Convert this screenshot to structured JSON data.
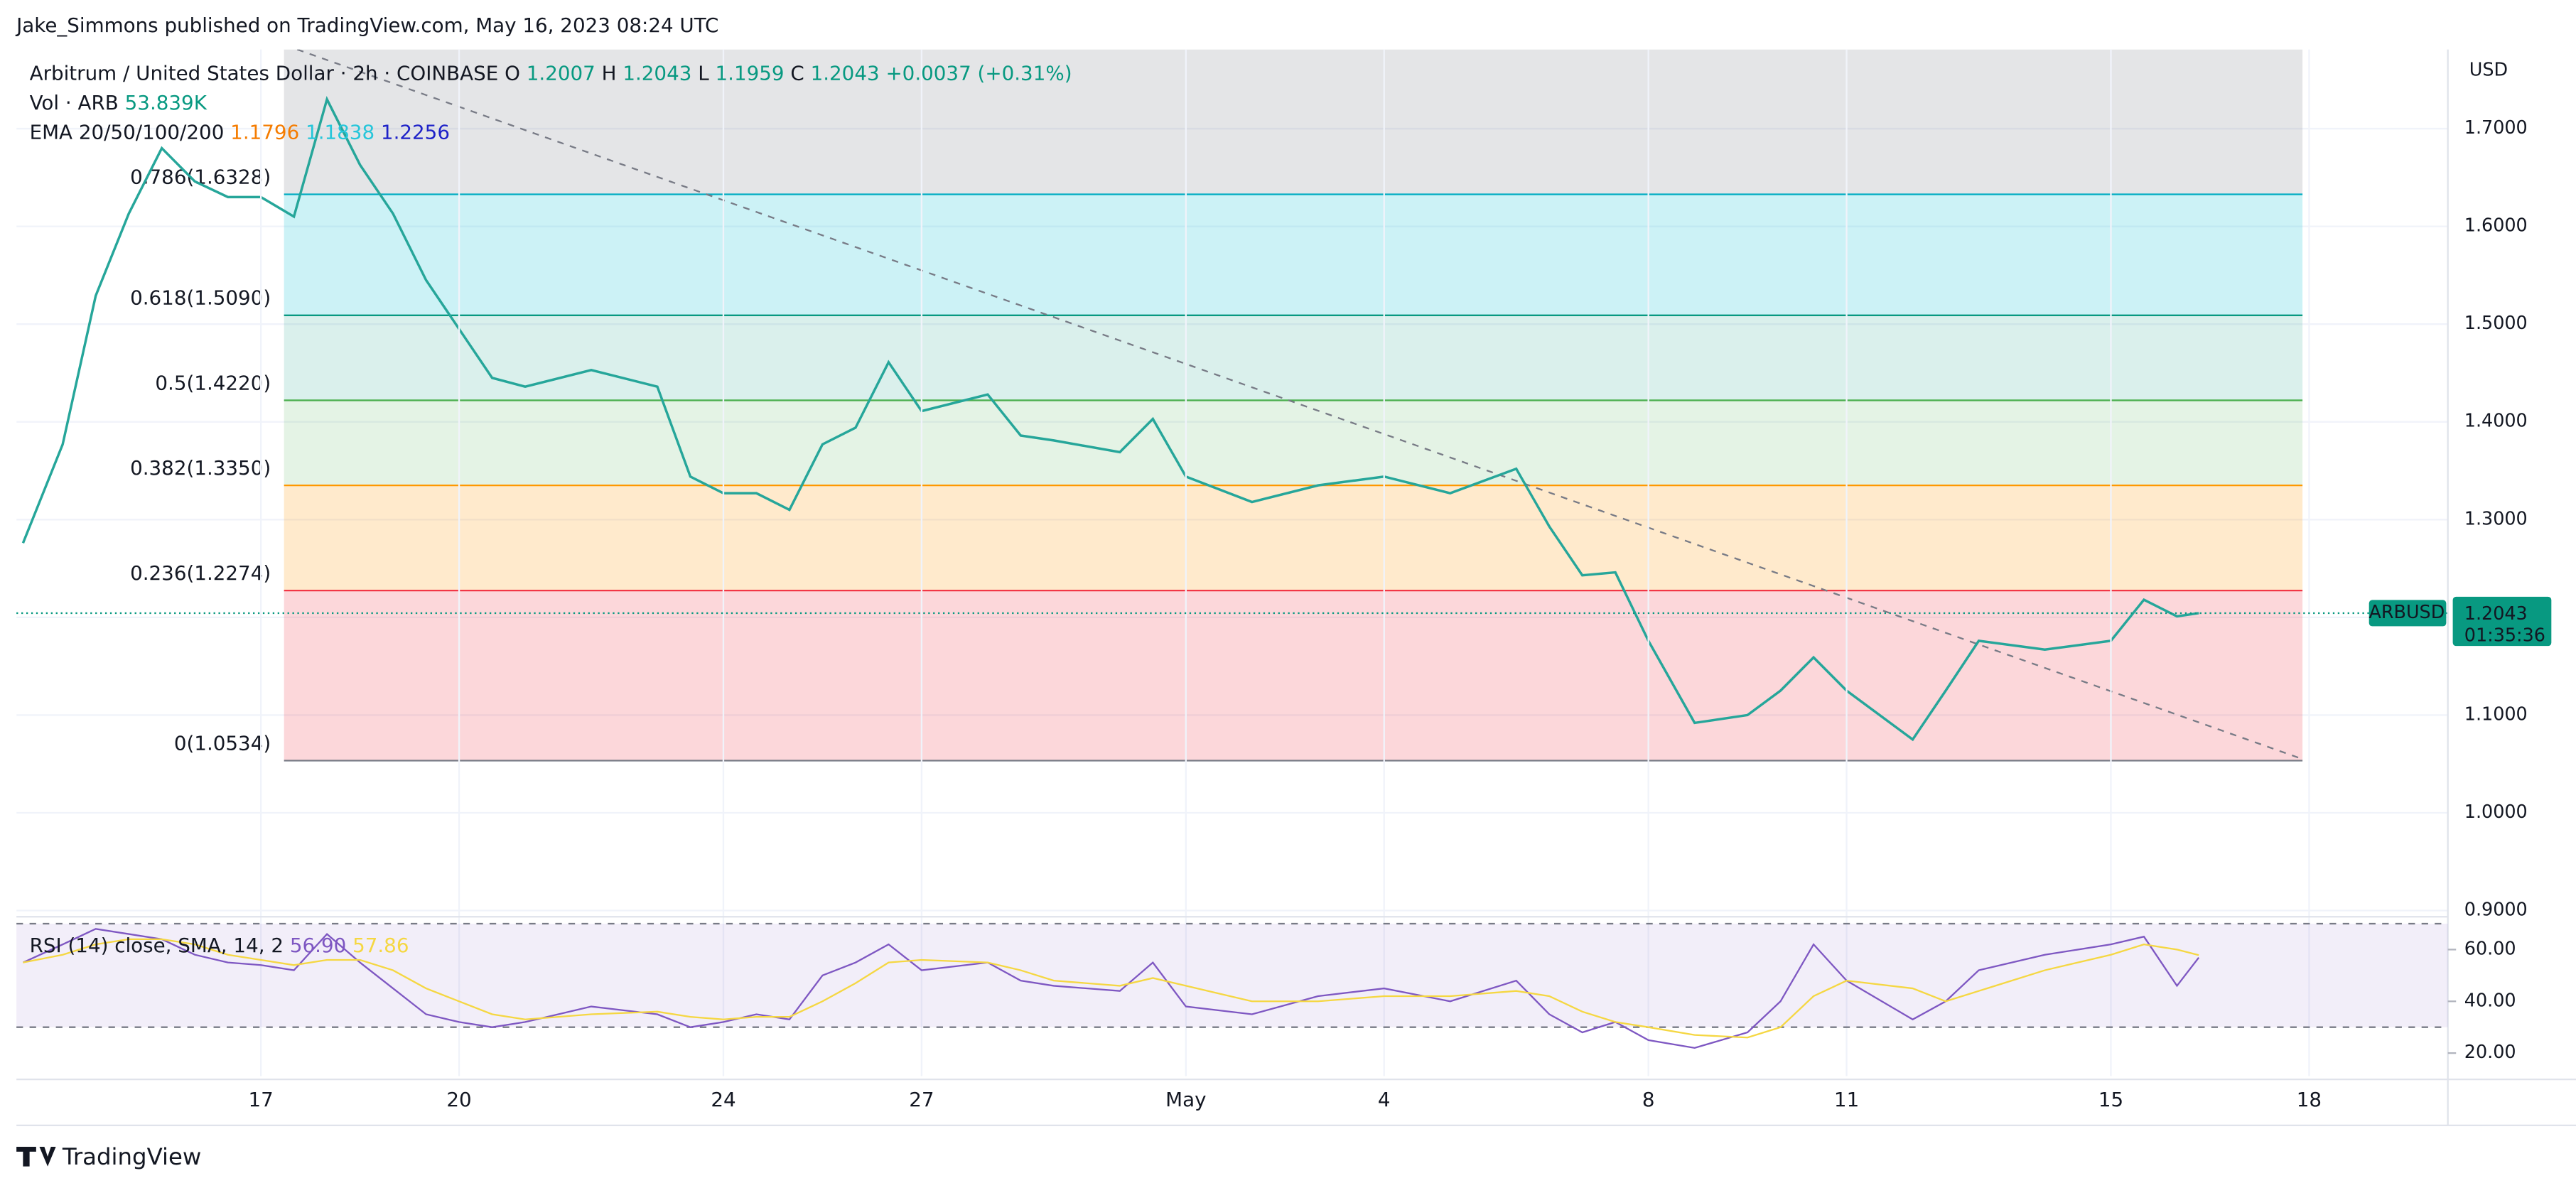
{
  "header": "Jake_Simmons published on TradingView.com, May 16, 2023 08:24 UTC",
  "footer": "TradingView",
  "chart_data": [
    {
      "type": "line",
      "symbol": "Arbitrum / United States Dollar · 2h · COINBASE",
      "ohlc": [
        {
          "label": "O",
          "value": 1.2007
        },
        {
          "label": "H",
          "value": 1.2043
        },
        {
          "label": "L",
          "value": 1.1959
        },
        {
          "label": "C",
          "value": 1.2043
        }
      ],
      "change": "+0.0037 (+0.31%)",
      "volume_legend": {
        "name": "Vol · ARB",
        "value": "53.839K"
      },
      "ema_legend": {
        "name": "EMA 20/50/100/200",
        "values": [
          1.1796,
          1.1838,
          1.2256
        ],
        "colors": [
          "#f57c00",
          "#26c6da",
          "#1e22c8"
        ]
      },
      "y_unit": "USD",
      "x": [
        13.4,
        14,
        14.5,
        15,
        15.5,
        16,
        16.5,
        17,
        17.5,
        18,
        18.5,
        19,
        19.5,
        20,
        20.5,
        21,
        22,
        23,
        23.5,
        24,
        24.5,
        25,
        25.5,
        26,
        26.5,
        27,
        28,
        28.5,
        29,
        30,
        30.5,
        31,
        32,
        33,
        34,
        35,
        36,
        36.5,
        37,
        37.5,
        38,
        38.7,
        39.5,
        40,
        40.5,
        41,
        42,
        42.5,
        43,
        44,
        45,
        45.5,
        46,
        46.33
      ],
      "series": [
        {
          "name": "ARBUSD",
          "color": "#26a69a",
          "values": [
            1.276,
            1.377,
            1.529,
            1.613,
            1.68,
            1.646,
            1.63,
            1.63,
            1.61,
            1.73,
            1.663,
            1.613,
            1.545,
            1.495,
            1.445,
            1.436,
            1.453,
            1.436,
            1.344,
            1.327,
            1.327,
            1.31,
            1.377,
            1.394,
            1.461,
            1.411,
            1.428,
            1.386,
            1.381,
            1.369,
            1.403,
            1.344,
            1.318,
            1.335,
            1.344,
            1.327,
            1.352,
            1.293,
            1.243,
            1.246,
            1.176,
            1.092,
            1.1,
            1.125,
            1.159,
            1.125,
            1.075,
            1.125,
            1.176,
            1.167,
            1.176,
            1.218,
            1.201,
            1.2043
          ]
        }
      ],
      "last": {
        "name": "ARBUSD",
        "value": 1.2043,
        "countdown": "01:35:36",
        "color": "#089981"
      },
      "xlim": [
        13.3,
        50.1
      ],
      "xticks": [
        {
          "value": 17,
          "label": "17"
        },
        {
          "value": 20,
          "label": "20"
        },
        {
          "value": 24,
          "label": "24"
        },
        {
          "value": 27,
          "label": "27"
        },
        {
          "value": 31,
          "label": "May"
        },
        {
          "value": 34,
          "label": "4"
        },
        {
          "value": 38,
          "label": "8"
        },
        {
          "value": 41,
          "label": "11"
        },
        {
          "value": 45,
          "label": "15"
        },
        {
          "value": 48,
          "label": "18"
        }
      ],
      "ylim": [
        0.897,
        1.781
      ],
      "yticks": [
        {
          "value": 0.9,
          "label": "0.9000"
        },
        {
          "value": 1.0,
          "label": "1.0000"
        },
        {
          "value": 1.1,
          "label": "1.1000"
        },
        {
          "value": 1.2,
          "label": "1.2000"
        },
        {
          "value": 1.3,
          "label": "1.3000"
        },
        {
          "value": 1.4,
          "label": "1.4000"
        },
        {
          "value": 1.5,
          "label": "1.5000"
        },
        {
          "value": 1.6,
          "label": "1.6000"
        },
        {
          "value": 1.7,
          "label": "1.7000"
        }
      ],
      "grid": true,
      "fib": {
        "x": [
          17.35,
          47.9
        ],
        "levels": [
          {
            "label": "0.786(1.6328)",
            "value": 1.6328,
            "color": "#00acc1",
            "fill": "rgba(120,123,134,0.2)"
          },
          {
            "label": "0.618(1.5090)",
            "value": 1.509,
            "color": "#089981",
            "fill": "rgba(0,188,212,0.2)"
          },
          {
            "label": "0.5(1.4220)",
            "value": 1.422,
            "color": "#4caf50",
            "fill": "rgba(8,153,129,0.15)"
          },
          {
            "label": "0.382(1.3350)",
            "value": 1.335,
            "color": "#ff9800",
            "fill": "rgba(76,175,80,0.15)"
          },
          {
            "label": "0.236(1.2274)",
            "value": 1.2274,
            "color": "#f23645",
            "fill": "rgba(255,152,0,0.2)"
          },
          {
            "label": "0(1.0534)",
            "value": 1.0534,
            "color": "#787b86",
            "fill": "rgba(242,54,69,0.2)"
          }
        ]
      },
      "trendline": {
        "x": [
          17.55,
          47.9
        ],
        "y": [
          1.781,
          1.055
        ]
      }
    },
    {
      "type": "line",
      "title": "RSI (14) close, SMA, 14, 2",
      "legend_values": [
        {
          "value": 56.9,
          "label": "56.90",
          "color": "#7e57c2"
        },
        {
          "value": 57.86,
          "label": "57.86",
          "color": "#f5d742"
        }
      ],
      "x": [
        13.4,
        14,
        14.5,
        15,
        15.5,
        16,
        16.5,
        17,
        17.5,
        18,
        18.5,
        19,
        19.5,
        20,
        20.5,
        21,
        22,
        23,
        23.5,
        24,
        24.5,
        25,
        25.5,
        26,
        26.5,
        27,
        28,
        28.5,
        29,
        30,
        30.5,
        31,
        32,
        33,
        34,
        35,
        36,
        36.5,
        37,
        37.5,
        38,
        38.7,
        39.5,
        40,
        40.5,
        41,
        42,
        42.5,
        43,
        44,
        45,
        45.5,
        46,
        46.33
      ],
      "series": [
        {
          "name": "RSI",
          "color": "#7e57c2",
          "values": [
            55,
            62,
            68,
            66,
            64,
            58,
            55,
            54,
            52,
            66,
            55,
            45,
            35,
            32,
            30,
            32,
            38,
            35,
            30,
            32,
            35,
            33,
            50,
            55,
            62,
            52,
            55,
            48,
            46,
            44,
            55,
            38,
            35,
            42,
            45,
            40,
            48,
            35,
            28,
            32,
            25,
            22,
            28,
            40,
            62,
            48,
            33,
            40,
            52,
            58,
            62,
            65,
            46,
            56.9
          ]
        },
        {
          "name": "SMA",
          "color": "#f5d742",
          "values": [
            55,
            58,
            62,
            64,
            64,
            62,
            58,
            56,
            54,
            56,
            56,
            52,
            45,
            40,
            35,
            33,
            35,
            36,
            34,
            33,
            34,
            34,
            40,
            47,
            55,
            56,
            55,
            52,
            48,
            46,
            49,
            46,
            40,
            40,
            42,
            42,
            44,
            42,
            36,
            32,
            30,
            27,
            26,
            30,
            42,
            48,
            45,
            40,
            44,
            52,
            58,
            62,
            60,
            57.86
          ]
        }
      ],
      "xlim": [
        13.3,
        50.1
      ],
      "ylim": [
        11.1,
        71.4
      ],
      "yticks": [
        {
          "value": 20,
          "label": "20.00"
        },
        {
          "value": 40,
          "label": "40.00"
        },
        {
          "value": 60,
          "label": "60.00"
        }
      ],
      "bands": [
        30,
        70
      ]
    }
  ]
}
